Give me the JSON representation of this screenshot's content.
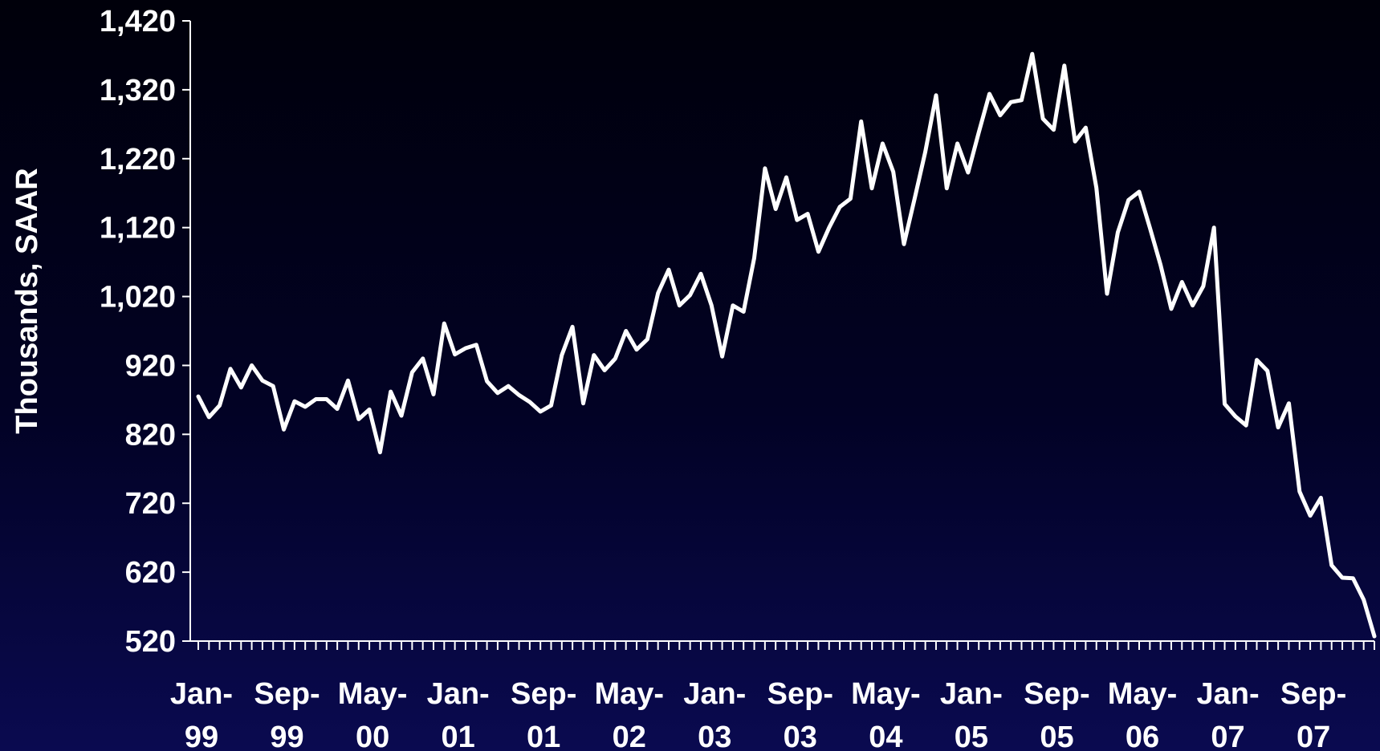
{
  "chart_data": {
    "type": "line",
    "title": "",
    "xlabel": "",
    "ylabel": "Thousands, SAAR",
    "ylim": [
      520,
      1420
    ],
    "yticks": [
      "1,420",
      "1,320",
      "1,220",
      "1,120",
      "1,020",
      "920",
      "820",
      "720",
      "620",
      "520"
    ],
    "ytick_values": [
      1420,
      1320,
      1220,
      1120,
      1020,
      920,
      820,
      720,
      620,
      520
    ],
    "grid": false,
    "legend": "none",
    "xtick_labels": [
      [
        "Jan-",
        "99"
      ],
      [
        "Sep-",
        "99"
      ],
      [
        "May-",
        "00"
      ],
      [
        "Jan-",
        "01"
      ],
      [
        "Sep-",
        "01"
      ],
      [
        "May-",
        "02"
      ],
      [
        "Jan-",
        "03"
      ],
      [
        "Sep-",
        "03"
      ],
      [
        "May-",
        "04"
      ],
      [
        "Jan-",
        "05"
      ],
      [
        "Sep-",
        "05"
      ],
      [
        "May-",
        "06"
      ],
      [
        "Jan-",
        "07"
      ],
      [
        "Sep-",
        "07"
      ]
    ],
    "xtick_month_index": [
      0,
      8,
      16,
      24,
      32,
      40,
      48,
      56,
      64,
      72,
      80,
      88,
      96,
      104
    ],
    "x_start": "Jan-99",
    "series": [
      {
        "color": "#ffffff",
        "values": [
          875,
          845,
          862,
          915,
          888,
          920,
          898,
          890,
          827,
          868,
          860,
          871,
          871,
          857,
          898,
          842,
          856,
          794,
          882,
          847,
          910,
          930,
          878,
          981,
          936,
          945,
          950,
          897,
          880,
          890,
          877,
          867,
          853,
          862,
          935,
          976,
          865,
          935,
          913,
          930,
          970,
          943,
          958,
          1025,
          1059,
          1007,
          1022,
          1053,
          1007,
          933,
          1007,
          998,
          1076,
          1206,
          1147,
          1193,
          1131,
          1140,
          1085,
          1120,
          1150,
          1162,
          1274,
          1177,
          1242,
          1201,
          1096,
          1162,
          1230,
          1312,
          1177,
          1242,
          1200,
          1258,
          1314,
          1283,
          1302,
          1305,
          1372,
          1278,
          1262,
          1355,
          1245,
          1265,
          1178,
          1024,
          1113,
          1160,
          1172,
          1120,
          1066,
          1002,
          1041,
          1007,
          1035,
          1120,
          864,
          846,
          833,
          928,
          912,
          830,
          865,
          737,
          702,
          728,
          630,
          612,
          611,
          580,
          527
        ]
      }
    ]
  }
}
